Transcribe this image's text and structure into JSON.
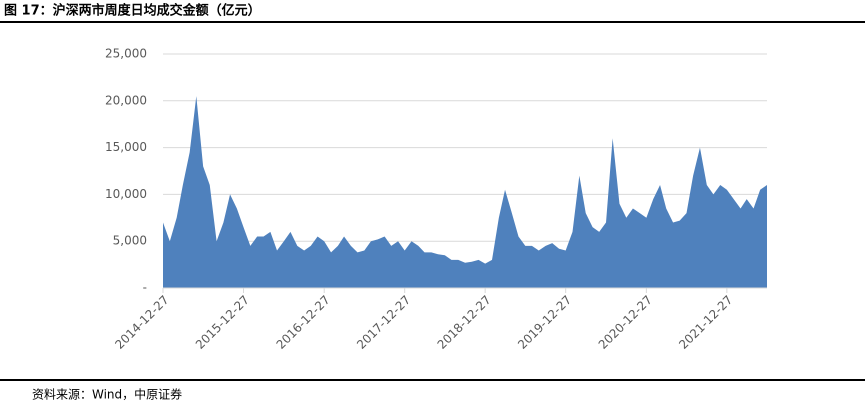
{
  "chart_data": {
    "type": "area",
    "title": "图 17：沪深两市周度日均成交金额（亿元）",
    "source": "资料来源：Wind，中原证券",
    "x": [
      "2014-12-27",
      "2015-01-27",
      "2015-02-27",
      "2015-03-27",
      "2015-04-27",
      "2015-05-27",
      "2015-06-27",
      "2015-07-27",
      "2015-08-27",
      "2015-09-27",
      "2015-10-27",
      "2015-11-27",
      "2015-12-27",
      "2016-01-27",
      "2016-02-27",
      "2016-03-27",
      "2016-04-27",
      "2016-05-27",
      "2016-06-27",
      "2016-07-27",
      "2016-08-27",
      "2016-09-27",
      "2016-10-27",
      "2016-11-27",
      "2016-12-27",
      "2017-01-27",
      "2017-02-27",
      "2017-03-27",
      "2017-04-27",
      "2017-05-27",
      "2017-06-27",
      "2017-07-27",
      "2017-08-27",
      "2017-09-27",
      "2017-10-27",
      "2017-11-27",
      "2017-12-27",
      "2018-01-27",
      "2018-02-27",
      "2018-03-27",
      "2018-04-27",
      "2018-05-27",
      "2018-06-27",
      "2018-07-27",
      "2018-08-27",
      "2018-09-27",
      "2018-10-27",
      "2018-11-27",
      "2018-12-27",
      "2019-01-27",
      "2019-02-27",
      "2019-03-27",
      "2019-04-27",
      "2019-05-27",
      "2019-06-27",
      "2019-07-27",
      "2019-08-27",
      "2019-09-27",
      "2019-10-27",
      "2019-11-27",
      "2019-12-27",
      "2020-01-27",
      "2020-02-27",
      "2020-03-27",
      "2020-04-27",
      "2020-05-27",
      "2020-06-27",
      "2020-07-27",
      "2020-08-27",
      "2020-09-27",
      "2020-10-27",
      "2020-11-27",
      "2020-12-27",
      "2021-01-27",
      "2021-02-27",
      "2021-03-27",
      "2021-04-27",
      "2021-05-27",
      "2021-06-27",
      "2021-07-27",
      "2021-08-27",
      "2021-09-27",
      "2021-10-27",
      "2021-11-27",
      "2021-12-27",
      "2022-01-27",
      "2022-02-27",
      "2022-03-27",
      "2022-04-27",
      "2022-05-27",
      "2022-06-27"
    ],
    "series": [
      {
        "color": "#4f81bd",
        "values": [
          7000,
          5000,
          7500,
          11000,
          14500,
          20500,
          13000,
          11000,
          5000,
          7000,
          10000,
          8500,
          6500,
          4500,
          5500,
          5500,
          6000,
          4000,
          5000,
          6000,
          4500,
          4000,
          4500,
          5500,
          5000,
          3800,
          4500,
          5500,
          4500,
          3800,
          4000,
          5000,
          5200,
          5500,
          4500,
          5000,
          4000,
          5000,
          4500,
          3800,
          3800,
          3600,
          3500,
          3000,
          3000,
          2700,
          2800,
          3000,
          2600,
          3000,
          7500,
          10500,
          8000,
          5500,
          4500,
          4500,
          4000,
          4500,
          4800,
          4200,
          4000,
          6000,
          12000,
          8000,
          6500,
          6000,
          7000,
          16000,
          9000,
          7500,
          8500,
          8000,
          7500,
          9500,
          11000,
          8500,
          7000,
          7200,
          8000,
          12000,
          15000,
          11000,
          10000,
          11000,
          10500,
          9500,
          8500,
          9500,
          8500,
          10500,
          11000
        ]
      }
    ],
    "xlim": [
      "2014-12-27",
      "2022-06-27"
    ],
    "xticks": [
      "2014-12-27",
      "2015-12-27",
      "2016-12-27",
      "2017-12-27",
      "2018-12-27",
      "2019-12-27",
      "2020-12-27",
      "2021-12-27"
    ],
    "ylim": [
      0,
      25000
    ],
    "yticks": [
      {
        "value": 0,
        "label": "-"
      },
      {
        "value": 5000,
        "label": "5,000"
      },
      {
        "value": 10000,
        "label": "10,000"
      },
      {
        "value": 15000,
        "label": "15,000"
      },
      {
        "value": 20000,
        "label": "20,000"
      },
      {
        "value": 25000,
        "label": "25,000"
      }
    ],
    "grid": true
  }
}
